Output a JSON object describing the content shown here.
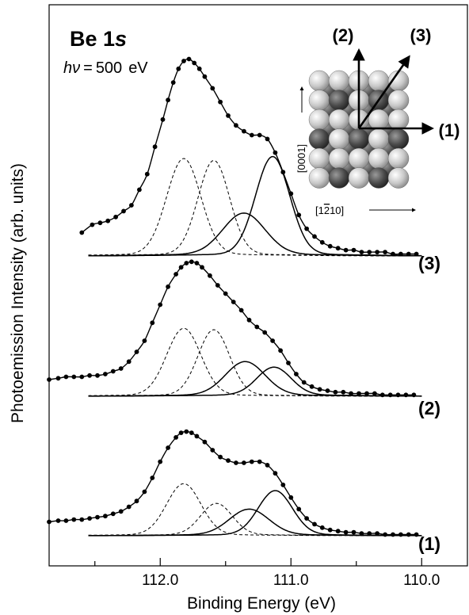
{
  "chart_data": {
    "type": "line",
    "title_main": "Be 1",
    "title_italic": "s",
    "photon_energy": {
      "symbol": "hν",
      "equals": "=",
      "value": "500",
      "unit": "eV"
    },
    "xlabel": "Binding Energy (eV)",
    "ylabel": "Photoemission Intensity (arb. units)",
    "x_reversed": true,
    "xlim": [
      112.85,
      109.65
    ],
    "x_ticks": [
      {
        "value": 112.5,
        "label": ""
      },
      {
        "value": 112.0,
        "label": "112.0"
      },
      {
        "value": 111.5,
        "label": ""
      },
      {
        "value": 111.0,
        "label": "111.0"
      },
      {
        "value": 110.5,
        "label": ""
      },
      {
        "value": 110.0,
        "label": "110.0"
      },
      {
        "value": 109.5,
        "label": ""
      }
    ],
    "spectra": [
      {
        "label": "(3)",
        "baseline_level": 0.0,
        "data_points": [
          [
            112.6,
            0.12
          ],
          [
            112.52,
            0.16
          ],
          [
            112.46,
            0.17
          ],
          [
            112.4,
            0.18
          ],
          [
            112.34,
            0.2
          ],
          [
            112.28,
            0.23
          ],
          [
            112.22,
            0.26
          ],
          [
            112.16,
            0.34
          ],
          [
            112.1,
            0.42
          ],
          [
            112.04,
            0.56
          ],
          [
            111.98,
            0.7
          ],
          [
            111.94,
            0.8
          ],
          [
            111.9,
            0.89
          ],
          [
            111.86,
            0.96
          ],
          [
            111.82,
            1.0
          ],
          [
            111.78,
            1.01
          ],
          [
            111.74,
            0.99
          ],
          [
            111.7,
            0.96
          ],
          [
            111.66,
            0.92
          ],
          [
            111.6,
            0.86
          ],
          [
            111.54,
            0.79
          ],
          [
            111.48,
            0.72
          ],
          [
            111.42,
            0.67
          ],
          [
            111.36,
            0.64
          ],
          [
            111.3,
            0.62
          ],
          [
            111.24,
            0.62
          ],
          [
            111.18,
            0.6
          ],
          [
            111.12,
            0.53
          ],
          [
            111.06,
            0.43
          ],
          [
            111.0,
            0.32
          ],
          [
            110.94,
            0.21
          ],
          [
            110.88,
            0.14
          ],
          [
            110.82,
            0.1
          ],
          [
            110.76,
            0.07
          ],
          [
            110.7,
            0.05
          ],
          [
            110.64,
            0.04
          ],
          [
            110.58,
            0.03
          ],
          [
            110.52,
            0.03
          ],
          [
            110.46,
            0.02
          ],
          [
            110.4,
            0.02
          ],
          [
            110.34,
            0.02
          ],
          [
            110.28,
            0.02
          ],
          [
            110.22,
            0.01
          ],
          [
            110.16,
            0.01
          ],
          [
            110.1,
            0.01
          ],
          [
            110.04,
            0.01
          ]
        ],
        "components": [
          {
            "style": "dashed",
            "center": 111.82,
            "height": 0.49,
            "width": 0.13
          },
          {
            "style": "dashed",
            "center": 111.59,
            "height": 0.48,
            "width": 0.12
          },
          {
            "style": "solid",
            "center": 111.36,
            "height": 0.21,
            "width": 0.16
          },
          {
            "style": "solid",
            "center": 111.14,
            "height": 0.5,
            "width": 0.13
          }
        ]
      },
      {
        "label": "(2)",
        "baseline_level": 0.0,
        "data_points": [
          [
            112.85,
            0.12
          ],
          [
            112.78,
            0.13
          ],
          [
            112.72,
            0.14
          ],
          [
            112.66,
            0.14
          ],
          [
            112.6,
            0.14
          ],
          [
            112.54,
            0.15
          ],
          [
            112.48,
            0.15
          ],
          [
            112.42,
            0.16
          ],
          [
            112.36,
            0.18
          ],
          [
            112.3,
            0.2
          ],
          [
            112.24,
            0.25
          ],
          [
            112.18,
            0.32
          ],
          [
            112.12,
            0.4
          ],
          [
            112.06,
            0.53
          ],
          [
            112.0,
            0.66
          ],
          [
            111.94,
            0.79
          ],
          [
            111.88,
            0.88
          ],
          [
            111.84,
            0.93
          ],
          [
            111.8,
            0.96
          ],
          [
            111.76,
            0.97
          ],
          [
            111.72,
            0.96
          ],
          [
            111.68,
            0.93
          ],
          [
            111.62,
            0.87
          ],
          [
            111.56,
            0.8
          ],
          [
            111.5,
            0.74
          ],
          [
            111.44,
            0.68
          ],
          [
            111.38,
            0.62
          ],
          [
            111.32,
            0.55
          ],
          [
            111.26,
            0.5
          ],
          [
            111.2,
            0.46
          ],
          [
            111.14,
            0.4
          ],
          [
            111.08,
            0.33
          ],
          [
            111.02,
            0.24
          ],
          [
            110.96,
            0.16
          ],
          [
            110.9,
            0.1
          ],
          [
            110.84,
            0.07
          ],
          [
            110.78,
            0.05
          ],
          [
            110.72,
            0.04
          ],
          [
            110.66,
            0.03
          ],
          [
            110.6,
            0.03
          ],
          [
            110.54,
            0.02
          ],
          [
            110.48,
            0.02
          ],
          [
            110.42,
            0.02
          ],
          [
            110.36,
            0.02
          ],
          [
            110.3,
            0.01
          ],
          [
            110.24,
            0.01
          ],
          [
            110.18,
            0.01
          ],
          [
            110.12,
            0.01
          ],
          [
            110.06,
            0.01
          ]
        ],
        "components": [
          {
            "style": "dashed",
            "center": 111.82,
            "height": 0.48,
            "width": 0.13
          },
          {
            "style": "dashed",
            "center": 111.59,
            "height": 0.47,
            "width": 0.12
          },
          {
            "style": "solid",
            "center": 111.35,
            "height": 0.24,
            "width": 0.15
          },
          {
            "style": "solid",
            "center": 111.13,
            "height": 0.2,
            "width": 0.13
          }
        ]
      },
      {
        "label": "(1)",
        "baseline_level": 0.0,
        "data_points": [
          [
            112.85,
            0.12
          ],
          [
            112.78,
            0.13
          ],
          [
            112.72,
            0.13
          ],
          [
            112.66,
            0.14
          ],
          [
            112.6,
            0.14
          ],
          [
            112.54,
            0.15
          ],
          [
            112.48,
            0.16
          ],
          [
            112.42,
            0.17
          ],
          [
            112.36,
            0.19
          ],
          [
            112.3,
            0.21
          ],
          [
            112.24,
            0.25
          ],
          [
            112.18,
            0.3
          ],
          [
            112.12,
            0.38
          ],
          [
            112.06,
            0.5
          ],
          [
            112.0,
            0.64
          ],
          [
            111.94,
            0.76
          ],
          [
            111.88,
            0.85
          ],
          [
            111.84,
            0.89
          ],
          [
            111.8,
            0.9
          ],
          [
            111.76,
            0.89
          ],
          [
            111.72,
            0.86
          ],
          [
            111.66,
            0.81
          ],
          [
            111.6,
            0.74
          ],
          [
            111.54,
            0.68
          ],
          [
            111.48,
            0.65
          ],
          [
            111.42,
            0.63
          ],
          [
            111.36,
            0.63
          ],
          [
            111.3,
            0.64
          ],
          [
            111.24,
            0.64
          ],
          [
            111.18,
            0.61
          ],
          [
            111.12,
            0.54
          ],
          [
            111.06,
            0.44
          ],
          [
            111.0,
            0.33
          ],
          [
            110.94,
            0.23
          ],
          [
            110.88,
            0.15
          ],
          [
            110.82,
            0.1
          ],
          [
            110.76,
            0.07
          ],
          [
            110.7,
            0.05
          ],
          [
            110.64,
            0.04
          ],
          [
            110.58,
            0.03
          ],
          [
            110.52,
            0.03
          ],
          [
            110.46,
            0.02
          ],
          [
            110.4,
            0.02
          ],
          [
            110.34,
            0.02
          ],
          [
            110.28,
            0.01
          ],
          [
            110.22,
            0.01
          ],
          [
            110.16,
            0.01
          ],
          [
            110.1,
            0.01
          ],
          [
            110.04,
            0.01
          ]
        ],
        "components": [
          {
            "style": "dashed",
            "center": 111.82,
            "height": 0.44,
            "width": 0.13
          },
          {
            "style": "dashed",
            "center": 111.57,
            "height": 0.27,
            "width": 0.12
          },
          {
            "style": "solid",
            "center": 111.32,
            "height": 0.22,
            "width": 0.15
          },
          {
            "style": "solid",
            "center": 111.12,
            "height": 0.38,
            "width": 0.13
          }
        ]
      }
    ],
    "inset": {
      "directions": [
        "(1)",
        "(2)",
        "(3)"
      ],
      "axis_labels": {
        "vertical": "[0001]",
        "horizontal_prefix": "[1",
        "horizontal_bar": "2",
        "horizontal_suffix": "10]"
      },
      "grid_rows": 6,
      "grid_cols": 5
    }
  }
}
